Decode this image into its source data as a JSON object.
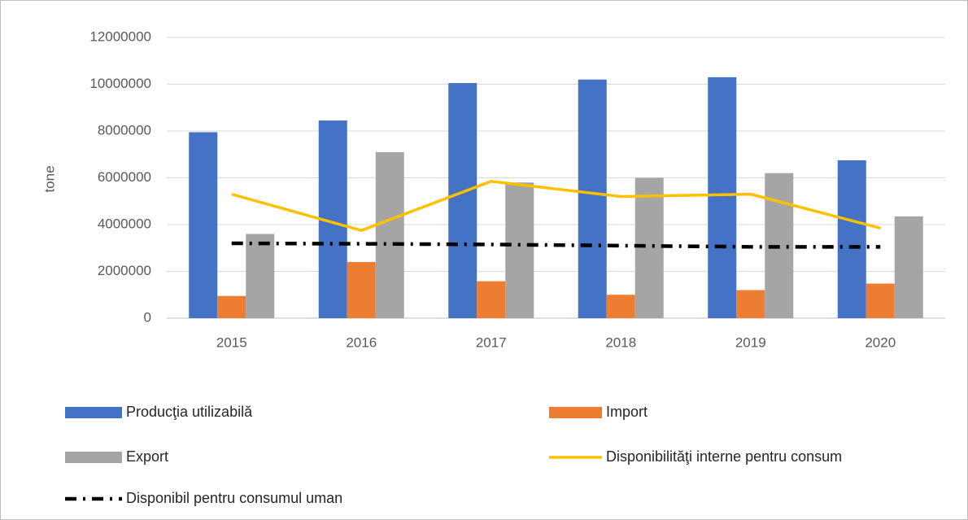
{
  "chart_data": {
    "type": "bar",
    "y_label": "tone",
    "categories": [
      "2015",
      "2016",
      "2017",
      "2018",
      "2019",
      "2020"
    ],
    "series": [
      {
        "name": "Producţia utilizabilă",
        "type": "bar",
        "color": "#4472c4",
        "values": [
          7950000,
          8450000,
          10050000,
          10200000,
          10300000,
          6750000
        ]
      },
      {
        "name": "Import",
        "type": "bar",
        "color": "#ed7d31",
        "values": [
          950000,
          2400000,
          1580000,
          1000000,
          1200000,
          1480000
        ]
      },
      {
        "name": "Export",
        "type": "bar",
        "color": "#a5a5a5",
        "values": [
          3600000,
          7100000,
          5800000,
          6000000,
          6200000,
          4350000
        ]
      },
      {
        "name": "Disponibilităţi interne pentru consum",
        "type": "line",
        "color": "#ffc000",
        "dash": "solid",
        "values": [
          5300000,
          3750000,
          5850000,
          5200000,
          5300000,
          3850000
        ]
      },
      {
        "name": "Disponibil pentru consumul uman",
        "type": "line",
        "color": "#000000",
        "dash": "dashdot",
        "values": [
          3200000,
          3180000,
          3150000,
          3100000,
          3050000,
          3050000
        ]
      }
    ],
    "ylim": [
      0,
      12000000
    ],
    "yticks": [
      0,
      2000000,
      4000000,
      6000000,
      8000000,
      10000000,
      12000000
    ],
    "grid": true
  }
}
